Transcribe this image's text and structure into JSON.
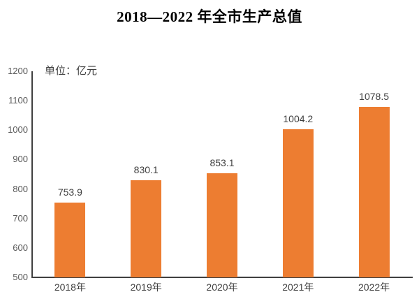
{
  "chart_data": {
    "type": "bar",
    "title": "2018—2022 年全市生产总值",
    "unit_label": "单位：亿元",
    "categories": [
      "2018年",
      "2019年",
      "2020年",
      "2021年",
      "2022年"
    ],
    "values": [
      753.9,
      830.1,
      853.1,
      1004.2,
      1078.5
    ],
    "data_labels": [
      "753.9",
      "830.1",
      "853.1",
      "1004.2",
      "1078.5"
    ],
    "ylim": [
      500,
      1200
    ],
    "yticks": [
      500,
      600,
      700,
      800,
      900,
      1000,
      1100,
      1200
    ],
    "bar_color": "#ED7D31",
    "axis_color": "#404040",
    "tick_label_color": "#595959",
    "data_label_color": "#404040",
    "legend_position": "none",
    "grid": false
  }
}
